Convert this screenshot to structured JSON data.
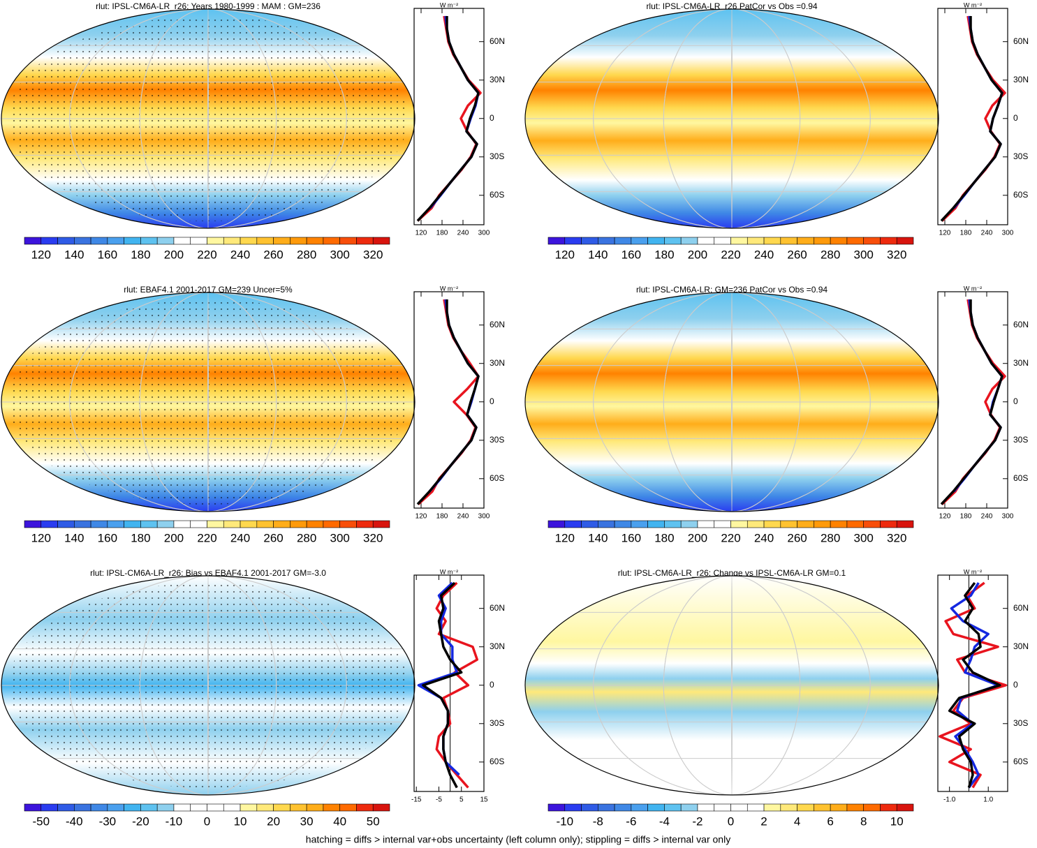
{
  "chart_data": [
    {
      "type": "line",
      "title": "rlut: IPSL-CM6A-LR_r26: Years 1980-1999 : MAM : GM=236",
      "units": "W m⁻²",
      "latitudes": [
        -80,
        -70,
        -60,
        -50,
        -40,
        -30,
        -20,
        -10,
        0,
        10,
        20,
        30,
        40,
        50,
        60,
        70,
        80
      ],
      "ylim": [
        -83,
        86
      ],
      "yticks": [
        {
          "value": -60,
          "label": "60S"
        },
        {
          "value": -30,
          "label": "30S"
        },
        0,
        {
          "value": 30,
          "label": "30N"
        },
        {
          "value": 60,
          "label": "60N"
        }
      ],
      "xlim": [
        100,
        300
      ],
      "xticks": [
        120,
        180,
        240,
        300
      ],
      "series": [
        {
          "color": "#e8141e",
          "values": [
            110,
            150,
            172,
            204,
            236,
            262,
            278,
            252,
            234,
            254,
            290,
            256,
            234,
            212,
            198,
            192,
            186
          ]
        },
        {
          "color": "#1428e0",
          "values": [
            null,
            146,
            176,
            204,
            234,
            264,
            280,
            250,
            262,
            276,
            284,
            254,
            234,
            214,
            200,
            194,
            190
          ]
        },
        {
          "color": "#000000",
          "values": [
            110,
            144,
            174,
            204,
            234,
            264,
            280,
            250,
            260,
            274,
            284,
            254,
            234,
            214,
            200,
            194,
            194
          ]
        }
      ],
      "colorbar": {
        "lim": [
          110,
          330
        ],
        "ticks": [
          120,
          140,
          160,
          180,
          200,
          220,
          240,
          260,
          280,
          300,
          320
        ],
        "colors": [
          "#3c14dc",
          "#2a3cf0",
          "#2f5be6",
          "#3a73e0",
          "#3f88e6",
          "#4aa0ee",
          "#41b4f0",
          "#5ec2f0",
          "#8ed0ee",
          "#ffffff",
          "#ffffff",
          "#fff7a0",
          "#ffe97a",
          "#ffd84e",
          "#ffc230",
          "#ffad1a",
          "#ff9a0a",
          "#ff8200",
          "#ff6a00",
          "#f84e0a",
          "#ee2a0e",
          "#d8140e"
        ]
      }
    },
    {
      "type": "line",
      "title": "rlut: IPSL-CM6A-LR_r26 PatCor vs Obs =0.94",
      "units": "W m⁻²",
      "latitudes": [
        -80,
        -70,
        -60,
        -50,
        -40,
        -30,
        -20,
        -10,
        0,
        10,
        20,
        30,
        40,
        50,
        60,
        70,
        80
      ],
      "ylim": [
        -83,
        86
      ],
      "yticks": [
        {
          "value": -60,
          "label": "60S"
        },
        {
          "value": -30,
          "label": "30S"
        },
        0,
        {
          "value": 30,
          "label": "30N"
        },
        {
          "value": 60,
          "label": "60N"
        }
      ],
      "xlim": [
        100,
        300
      ],
      "xticks": [
        120,
        180,
        240,
        300
      ],
      "series": [
        {
          "color": "#e8141e",
          "values": [
            112,
            150,
            172,
            204,
            236,
            262,
            278,
            252,
            236,
            256,
            292,
            258,
            234,
            212,
            198,
            192,
            186
          ]
        },
        {
          "color": "#1428e0",
          "values": [
            null,
            146,
            176,
            204,
            234,
            264,
            280,
            250,
            258,
            272,
            284,
            254,
            234,
            214,
            200,
            194,
            190
          ]
        },
        {
          "color": "#000000",
          "values": [
            110,
            144,
            174,
            204,
            234,
            264,
            280,
            250,
            258,
            272,
            284,
            254,
            234,
            214,
            200,
            194,
            194
          ]
        }
      ],
      "colorbar": {
        "lim": [
          110,
          330
        ],
        "ticks": [
          120,
          140,
          160,
          180,
          200,
          220,
          240,
          260,
          280,
          300,
          320
        ],
        "colors": [
          "#3c14dc",
          "#2a3cf0",
          "#2f5be6",
          "#3a73e0",
          "#3f88e6",
          "#4aa0ee",
          "#41b4f0",
          "#5ec2f0",
          "#8ed0ee",
          "#ffffff",
          "#ffffff",
          "#fff7a0",
          "#ffe97a",
          "#ffd84e",
          "#ffc230",
          "#ffad1a",
          "#ff9a0a",
          "#ff8200",
          "#ff6a00",
          "#f84e0a",
          "#ee2a0e",
          "#d8140e"
        ]
      }
    },
    {
      "type": "line",
      "title": "rlut: EBAF4.1 2001-2017 GM=239 Uncer=5%",
      "units": "W m⁻²",
      "latitudes": [
        -80,
        -70,
        -60,
        -50,
        -40,
        -30,
        -20,
        -10,
        0,
        10,
        20,
        30,
        40,
        50,
        60,
        70,
        80
      ],
      "ylim": [
        -83,
        86
      ],
      "yticks": [
        {
          "value": -60,
          "label": "60S"
        },
        {
          "value": -30,
          "label": "30S"
        },
        0,
        {
          "value": 30,
          "label": "30N"
        },
        {
          "value": 60,
          "label": "60N"
        }
      ],
      "xlim": [
        100,
        300
      ],
      "xticks": [
        120,
        180,
        240,
        300
      ],
      "series": [
        {
          "color": "#e8141e",
          "values": [
            112,
            152,
            172,
            204,
            236,
            262,
            276,
            250,
            214,
            252,
            284,
            260,
            234,
            212,
            198,
            192,
            186
          ]
        },
        {
          "color": "#1428e0",
          "values": [
            null,
            144,
            176,
            204,
            234,
            264,
            278,
            252,
            264,
            274,
            284,
            254,
            234,
            214,
            200,
            194,
            190
          ]
        },
        {
          "color": "#000000",
          "values": [
            110,
            144,
            174,
            204,
            234,
            264,
            278,
            252,
            262,
            274,
            284,
            254,
            234,
            214,
            200,
            194,
            194
          ]
        }
      ],
      "colorbar": {
        "lim": [
          110,
          330
        ],
        "ticks": [
          120,
          140,
          160,
          180,
          200,
          220,
          240,
          260,
          280,
          300,
          320
        ],
        "colors": [
          "#3c14dc",
          "#2a3cf0",
          "#2f5be6",
          "#3a73e0",
          "#3f88e6",
          "#4aa0ee",
          "#41b4f0",
          "#5ec2f0",
          "#8ed0ee",
          "#ffffff",
          "#ffffff",
          "#fff7a0",
          "#ffe97a",
          "#ffd84e",
          "#ffc230",
          "#ffad1a",
          "#ff9a0a",
          "#ff8200",
          "#ff6a00",
          "#f84e0a",
          "#ee2a0e",
          "#d8140e"
        ]
      }
    },
    {
      "type": "line",
      "title": "rlut: IPSL-CM6A-LR: GM=236 PatCor vs Obs =0.94",
      "units": "W m⁻²",
      "latitudes": [
        -80,
        -70,
        -60,
        -50,
        -40,
        -30,
        -20,
        -10,
        0,
        10,
        20,
        30,
        40,
        50,
        60,
        70,
        80
      ],
      "ylim": [
        -83,
        86
      ],
      "yticks": [
        {
          "value": -60,
          "label": "60S"
        },
        {
          "value": -30,
          "label": "30S"
        },
        0,
        {
          "value": 30,
          "label": "30N"
        },
        {
          "value": 60,
          "label": "60N"
        }
      ],
      "xlim": [
        100,
        300
      ],
      "xticks": [
        120,
        180,
        240,
        300
      ],
      "series": [
        {
          "color": "#e8141e",
          "values": [
            112,
            150,
            172,
            204,
            236,
            262,
            278,
            252,
            236,
            256,
            292,
            258,
            234,
            212,
            198,
            192,
            186
          ]
        },
        {
          "color": "#1428e0",
          "values": [
            null,
            146,
            176,
            204,
            234,
            264,
            280,
            250,
            258,
            272,
            284,
            254,
            234,
            214,
            200,
            194,
            190
          ]
        },
        {
          "color": "#000000",
          "values": [
            110,
            144,
            174,
            204,
            234,
            264,
            280,
            250,
            260,
            272,
            284,
            254,
            234,
            214,
            200,
            194,
            194
          ]
        }
      ],
      "colorbar": {
        "lim": [
          110,
          330
        ],
        "ticks": [
          120,
          140,
          160,
          180,
          200,
          220,
          240,
          260,
          280,
          300,
          320
        ],
        "colors": [
          "#3c14dc",
          "#2a3cf0",
          "#2f5be6",
          "#3a73e0",
          "#3f88e6",
          "#4aa0ee",
          "#41b4f0",
          "#5ec2f0",
          "#8ed0ee",
          "#ffffff",
          "#ffffff",
          "#fff7a0",
          "#ffe97a",
          "#ffd84e",
          "#ffc230",
          "#ffad1a",
          "#ff9a0a",
          "#ff8200",
          "#ff6a00",
          "#f84e0a",
          "#ee2a0e",
          "#d8140e"
        ]
      }
    },
    {
      "type": "line",
      "title": "rlut: IPSL-CM6A-LR_r26: Bias vs EBAF4.1 2001-2017 GM=-3.0",
      "units": "W m⁻²",
      "latitudes": [
        -80,
        -70,
        -60,
        -50,
        -40,
        -30,
        -20,
        -10,
        0,
        10,
        20,
        30,
        40,
        50,
        60,
        70,
        80
      ],
      "ylim": [
        -83,
        86
      ],
      "yticks": [
        {
          "value": -60,
          "label": "60S"
        },
        {
          "value": -30,
          "label": "30S"
        },
        0,
        {
          "value": 30,
          "label": "30N"
        },
        {
          "value": 60,
          "label": "60N"
        }
      ],
      "xlim": [
        -16,
        15
      ],
      "xticks": [
        -15,
        -5,
        5,
        15
      ],
      "series": [
        {
          "color": "#e8141e",
          "values": [
            8,
            3,
            -2,
            -6,
            -5,
            0,
            -1,
            -3,
            8,
            2,
            12,
            10,
            -5,
            -2,
            -6,
            -3,
            3
          ]
        },
        {
          "color": "#1428e0",
          "values": [
            null,
            4,
            -2,
            -3,
            -3,
            -1,
            -1,
            -4,
            -14,
            3,
            1,
            1,
            -4,
            -4,
            -2,
            -5,
            1
          ]
        },
        {
          "color": "#000000",
          "values": [
            3,
            0,
            -2,
            -3,
            -3,
            -1,
            -1,
            -4,
            -12,
            5,
            0,
            -3,
            -4,
            -5,
            -3,
            -4,
            2
          ]
        }
      ],
      "colorbar": {
        "lim": [
          -55,
          55
        ],
        "ticks": [
          -50,
          -40,
          -30,
          -20,
          -10,
          0,
          10,
          20,
          30,
          40,
          50
        ],
        "colors": [
          "#3c14dc",
          "#2a3cf0",
          "#2f5be6",
          "#3a73e0",
          "#3f88e6",
          "#4aa0ee",
          "#41b4f0",
          "#5ec2f0",
          "#8ed0ee",
          "#ffffff",
          "#ffffff",
          "#ffffff",
          "#ffffff",
          "#fff7a0",
          "#ffe97a",
          "#ffd84e",
          "#ffc230",
          "#ffad1a",
          "#ff8200",
          "#ff6a00",
          "#ee2a0e",
          "#d8140e"
        ]
      }
    },
    {
      "type": "line",
      "title": "rlut: IPSL-CM6A-LR_r26: Change vs IPSL-CM6A-LR GM=0.1",
      "units": "W m⁻²",
      "latitudes": [
        -80,
        -70,
        -60,
        -50,
        -40,
        -30,
        -20,
        -10,
        0,
        10,
        20,
        30,
        40,
        50,
        60,
        70,
        80
      ],
      "ylim": [
        -83,
        86
      ],
      "yticks": [
        {
          "value": -60,
          "label": "60S"
        },
        {
          "value": -30,
          "label": "30S"
        },
        0,
        {
          "value": 30,
          "label": "30N"
        },
        {
          "value": 60,
          "label": "60N"
        }
      ],
      "xlim": [
        -1.6,
        2
      ],
      "xticks": [
        {
          "value": -1,
          "label": "-1.0"
        },
        {
          "value": 1,
          "label": "1.0"
        }
      ],
      "series": [
        {
          "color": "#e8141e",
          "values": [
            0.2,
            0.6,
            -1.0,
            0.1,
            -1.5,
            0.1,
            -0.8,
            -0.3,
            1.9,
            -0.2,
            -0.6,
            1.5,
            -0.8,
            -1.2,
            0.3,
            -0.1,
            0.8
          ]
        },
        {
          "color": "#1428e0",
          "values": [
            0,
            0.5,
            0.2,
            -0.2,
            -0.7,
            0.2,
            -0.6,
            -0.4,
            1.5,
            -0.2,
            0.1,
            0.3,
            1.0,
            -0.3,
            -0.9,
            0.1,
            0.5
          ]
        },
        {
          "color": "#000000",
          "values": [
            0,
            0.2,
            0.1,
            -0.3,
            -0.5,
            0.3,
            -1.0,
            -0.5,
            1.6,
            0.2,
            -0.3,
            0.6,
            0.5,
            -0.2,
            0.2,
            -0.2,
            0.3
          ]
        }
      ],
      "colorbar": {
        "lim": [
          -11,
          11
        ],
        "ticks": [
          -10,
          -8,
          -6,
          -4,
          -2,
          0,
          2,
          4,
          6,
          8,
          10
        ],
        "colors": [
          "#3c14dc",
          "#2a3cf0",
          "#2f5be6",
          "#3a73e0",
          "#3f88e6",
          "#4aa0ee",
          "#41b4f0",
          "#5ec2f0",
          "#8ed0ee",
          "#ffffff",
          "#ffffff",
          "#ffffff",
          "#ffffff",
          "#fff7a0",
          "#ffe97a",
          "#ffd84e",
          "#ffc230",
          "#ffad1a",
          "#ff8200",
          "#ff6a00",
          "#ee2a0e",
          "#d8140e"
        ]
      }
    }
  ],
  "footer": "hatching = diffs > internal var+obs uncertainty (left column only); stippling = diffs > internal var only"
}
